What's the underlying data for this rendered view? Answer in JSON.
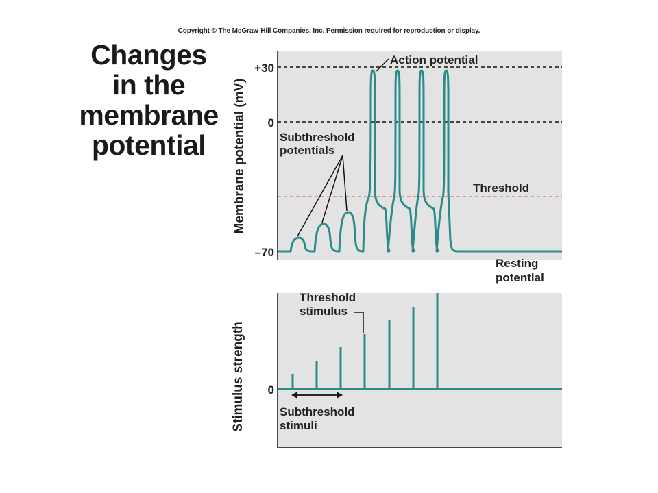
{
  "copyright": "Copyright © The McGraw-Hill Companies, Inc. Permission required for reproduction or display.",
  "title_lines": [
    "Changes",
    "in the",
    "membrane",
    "potential"
  ],
  "top_panel": {
    "ylabel": "Membrane potential (mV)",
    "ticks": [
      "+30",
      "0",
      "–70"
    ],
    "labels": {
      "action_potential": "Action potential",
      "subthreshold_line1": "Subthreshold",
      "subthreshold_line2": "potentials",
      "threshold": "Threshold",
      "resting_line1": "Resting",
      "resting_line2": "potential"
    }
  },
  "bottom_panel": {
    "ylabel": "Stimulus strength",
    "ticks": [
      "0"
    ],
    "labels": {
      "threshold_stim_line1": "Threshold",
      "threshold_stim_line2": "stimulus",
      "subthreshold_stim_line1": "Subthreshold",
      "subthreshold_stim_line2": "stimuli"
    }
  },
  "colors": {
    "trace": "#2a8c8a",
    "panel_bg": "#e3e3e3",
    "threshold_line": "#d46a6a",
    "dashed": "#111111"
  }
}
